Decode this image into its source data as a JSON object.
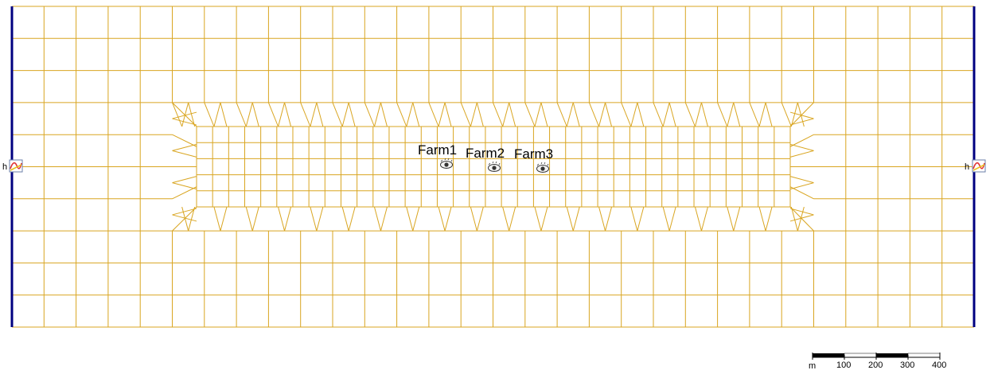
{
  "map": {
    "mesh_color": "#D9A520",
    "boundary_color": "#000080",
    "boundary_conditions": [
      {
        "side": "left",
        "label": "h",
        "icon": "time-series-icon"
      },
      {
        "side": "right",
        "label": "h",
        "icon": "time-series-icon"
      }
    ],
    "observation_points": [
      {
        "name": "Farm1",
        "icon": "eye-icon"
      },
      {
        "name": "Farm2",
        "icon": "eye-icon"
      },
      {
        "name": "Farm3",
        "icon": "eye-icon"
      }
    ]
  },
  "scale_bar": {
    "unit": "m",
    "ticks": [
      "100",
      "200",
      "300",
      "400"
    ]
  }
}
